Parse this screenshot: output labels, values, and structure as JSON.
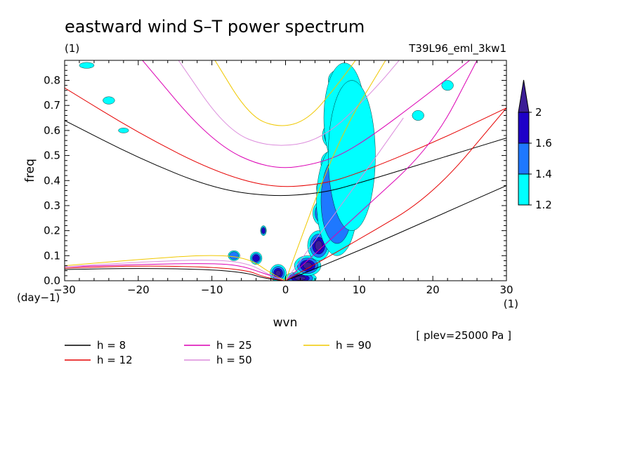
{
  "chart_data": {
    "type": "heatmap",
    "title": "eastward wind S–T power spectrum",
    "subtitle_left": "(1)",
    "subtitle_right": "T39L96_eml_3kw1",
    "xlabel": "wvn",
    "ylabel": "freq",
    "x_unit_label": "(1)",
    "y_unit_label": "(day−1)",
    "note": "[ plev=25000 Pa ]",
    "xlim": [
      -30,
      30
    ],
    "ylim": [
      0,
      0.88
    ],
    "x_ticks": [
      -30,
      -20,
      -10,
      0,
      10,
      20,
      30
    ],
    "x_tick_labels": [
      "−30",
      "−20",
      "−10",
      "0",
      "10",
      "20",
      "30"
    ],
    "y_ticks": [
      0,
      0.1,
      0.2,
      0.3,
      0.4,
      0.5,
      0.6,
      0.7,
      0.8
    ],
    "y_tick_labels": [
      "0.0",
      "0.1",
      "0.2",
      "0.3",
      "0.4",
      "0.5",
      "0.6",
      "0.7",
      "0.8"
    ],
    "colorbar": {
      "levels": [
        "1.2",
        "1.4",
        "1.6",
        "2"
      ],
      "colors": [
        "#00ffff",
        "#1e78ff",
        "#1e00c8",
        "#3c1e96"
      ]
    },
    "legend": [
      {
        "label": "h =  8",
        "color": "#000000"
      },
      {
        "label": "h = 12",
        "color": "#e60000"
      },
      {
        "label": "h = 25",
        "color": "#dc00b4"
      },
      {
        "label": "h = 50",
        "color": "#dc8cdc"
      },
      {
        "label": "h = 90",
        "color": "#f0c800"
      }
    ],
    "series": [
      {
        "name": "h =  8",
        "curves": {
          "ig": [
            [
              -30,
              0.64
            ],
            [
              -20,
              0.49
            ],
            [
              -10,
              0.37
            ],
            [
              -2,
              0.335
            ],
            [
              5,
              0.35
            ],
            [
              10,
              0.39
            ],
            [
              20,
              0.48
            ],
            [
              30,
              0.57
            ]
          ],
          "kelvin": [
            [
              0,
              0
            ],
            [
              10,
              0.12
            ],
            [
              20,
              0.25
            ],
            [
              30,
              0.38
            ]
          ],
          "rossby": [
            [
              -30,
              0.045
            ],
            [
              -20,
              0.05
            ],
            [
              -10,
              0.045
            ],
            [
              -5,
              0.03
            ],
            [
              -3,
              0.01
            ],
            [
              0,
              0
            ]
          ]
        }
      },
      {
        "name": "h = 12",
        "curves": {
          "ig": [
            [
              -30,
              0.77
            ],
            [
              -20,
              0.59
            ],
            [
              -10,
              0.44
            ],
            [
              -2,
              0.37
            ],
            [
              5,
              0.385
            ],
            [
              10,
              0.43
            ],
            [
              20,
              0.55
            ],
            [
              30,
              0.69
            ]
          ],
          "kelvin": [
            [
              0,
              0
            ],
            [
              10,
              0.165
            ],
            [
              20,
              0.34
            ],
            [
              30,
              0.69
            ]
          ],
          "rossby": [
            [
              -30,
              0.05
            ],
            [
              -20,
              0.06
            ],
            [
              -10,
              0.055
            ],
            [
              -5,
              0.04
            ],
            [
              -3,
              0.015
            ],
            [
              0,
              0
            ]
          ]
        }
      },
      {
        "name": "h = 25",
        "curves": {
          "ig": [
            [
              -20,
              0.9
            ],
            [
              -10,
              0.55
            ],
            [
              -2,
              0.44
            ],
            [
              5,
              0.47
            ],
            [
              10,
              0.54
            ],
            [
              20,
              0.76
            ],
            [
              25,
              0.88
            ]
          ],
          "kelvin": [
            [
              0,
              0
            ],
            [
              10,
              0.27
            ],
            [
              20,
              0.54
            ],
            [
              26,
              0.88
            ]
          ],
          "rossby": [
            [
              -30,
              0.055
            ],
            [
              -20,
              0.065
            ],
            [
              -10,
              0.07
            ],
            [
              -6,
              0.06
            ],
            [
              -3,
              0.03
            ],
            [
              0,
              0
            ]
          ]
        }
      },
      {
        "name": "h = 50",
        "curves": {
          "ig": [
            [
              -15,
              0.9
            ],
            [
              -8,
              0.6
            ],
            [
              -2,
              0.53
            ],
            [
              5,
              0.56
            ],
            [
              12,
              0.76
            ],
            [
              16,
              0.9
            ]
          ],
          "kelvin": [
            [
              0,
              0
            ],
            [
              10,
              0.4
            ],
            [
              16,
              0.65
            ]
          ],
          "rossby": [
            [
              -30,
              0.055
            ],
            [
              -20,
              0.075
            ],
            [
              -10,
              0.085
            ],
            [
              -5,
              0.07
            ],
            [
              -2,
              0.02
            ],
            [
              0,
              0
            ]
          ]
        }
      },
      {
        "name": "h = 90",
        "curves": {
          "ig": [
            [
              -10,
              0.9
            ],
            [
              -5,
              0.66
            ],
            [
              -1,
              0.61
            ],
            [
              3,
              0.64
            ],
            [
              7,
              0.78
            ],
            [
              10,
              0.9
            ]
          ],
          "kelvin": [
            [
              0,
              0
            ],
            [
              7,
              0.56
            ],
            [
              14,
              0.9
            ]
          ],
          "rossby": [
            [
              -30,
              0.06
            ],
            [
              -20,
              0.085
            ],
            [
              -10,
              0.105
            ],
            [
              -5,
              0.09
            ],
            [
              -2,
              0.03
            ],
            [
              0,
              0
            ]
          ]
        }
      }
    ],
    "blobs": [
      [
        2,
        0.01,
        2.2,
        0.025,
        4
      ],
      [
        -1,
        0.03,
        1.1,
        0.035,
        4
      ],
      [
        3,
        0.06,
        1.8,
        0.04,
        4
      ],
      [
        4.5,
        0.14,
        1.5,
        0.06,
        4
      ],
      [
        5,
        0.27,
        1.3,
        0.05,
        4
      ],
      [
        5.5,
        0.37,
        1.3,
        0.04,
        3
      ],
      [
        6,
        0.47,
        1.2,
        0.045,
        3
      ],
      [
        6.3,
        0.58,
        1.3,
        0.05,
        3
      ],
      [
        6.8,
        0.7,
        1.3,
        0.045,
        3
      ],
      [
        7,
        0.8,
        1.2,
        0.04,
        3
      ],
      [
        -4,
        0.09,
        0.8,
        0.025,
        3
      ],
      [
        -3,
        0.2,
        0.4,
        0.02,
        3
      ],
      [
        7,
        0.32,
        2.8,
        0.22,
        2
      ],
      [
        8,
        0.65,
        2.8,
        0.22,
        1
      ],
      [
        9,
        0.5,
        3.2,
        0.3,
        1
      ],
      [
        -24,
        0.72,
        0.8,
        0.015,
        1
      ],
      [
        -27,
        0.86,
        1.0,
        0.012,
        1
      ],
      [
        -22,
        0.6,
        0.7,
        0.01,
        1
      ],
      [
        18,
        0.66,
        0.8,
        0.02,
        1
      ],
      [
        22,
        0.78,
        0.8,
        0.02,
        1
      ],
      [
        -7,
        0.1,
        0.8,
        0.02,
        2
      ]
    ]
  }
}
